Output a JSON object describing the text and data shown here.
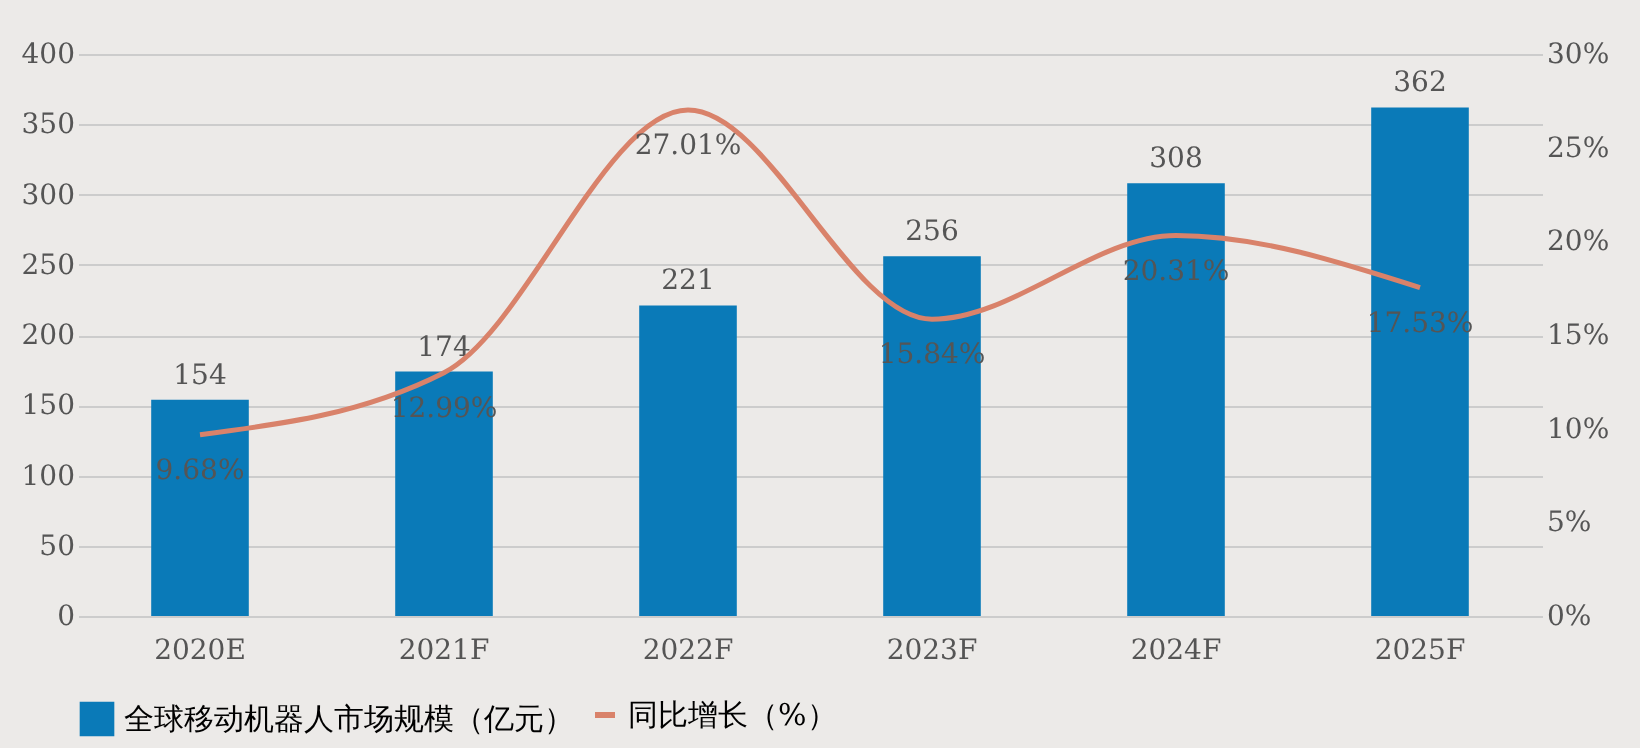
{
  "chart_data": {
    "type": "bar",
    "categories": [
      "2020E",
      "2021F",
      "2022F",
      "2023F",
      "2024F",
      "2025F"
    ],
    "series": [
      {
        "name": "全球移动机器人市场规模（亿元）",
        "type": "bar",
        "color": "#0a7ab8",
        "values": [
          154,
          174,
          221,
          256,
          308,
          362
        ]
      },
      {
        "name": "同比增长（%）",
        "type": "line",
        "axis": "y2",
        "color": "#d9826a",
        "values": [
          9.68,
          12.99,
          27.01,
          15.84,
          20.31,
          17.53
        ],
        "value_labels": [
          "9.68%",
          "12.99%",
          "27.01%",
          "15.84%",
          "20.31%",
          "17.53%"
        ]
      }
    ],
    "ylim": [
      0,
      400
    ],
    "yticks": [
      0,
      50,
      100,
      150,
      200,
      250,
      300,
      350,
      400
    ],
    "y2lim": [
      0,
      30
    ],
    "y2ticks": [
      {
        "value": 0,
        "label": "0%"
      },
      {
        "value": 5,
        "label": "5%"
      },
      {
        "value": 10,
        "label": "10%"
      },
      {
        "value": 15,
        "label": "15%"
      },
      {
        "value": 20,
        "label": "20%"
      },
      {
        "value": 25,
        "label": "25%"
      },
      {
        "value": 30,
        "label": "30%"
      }
    ],
    "data_labels": true,
    "grid": "y",
    "legend": "bottom",
    "marker": "none",
    "line_style": "solid"
  }
}
